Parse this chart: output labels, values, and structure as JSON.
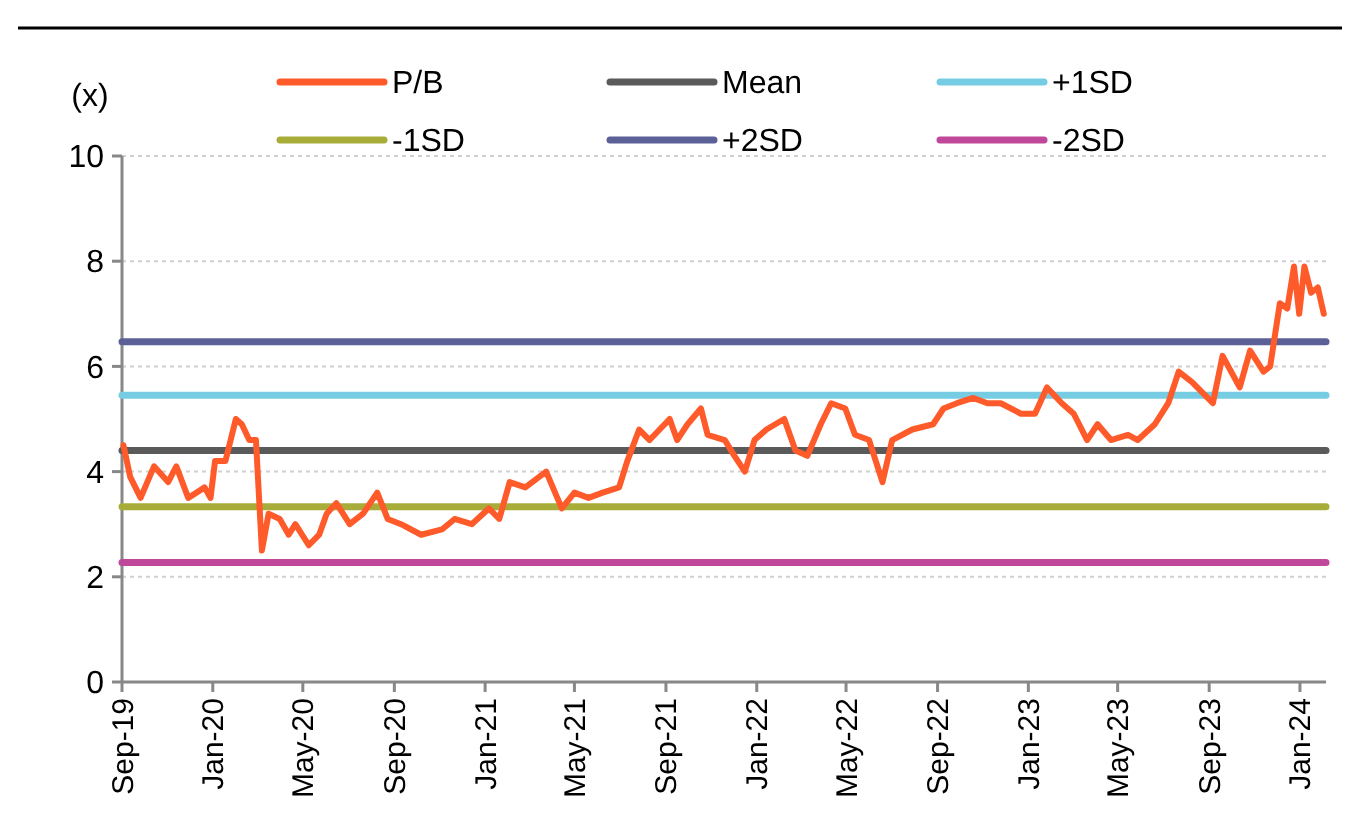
{
  "chart_data": {
    "type": "line",
    "ylabel": "(x)",
    "legend": "top",
    "grid": "y",
    "line_style": "solid",
    "marker": "none",
    "xlim": [
      "2019-09-01",
      "2024-02-05"
    ],
    "xticks": [
      {
        "value": "2019-09-01",
        "label": "Sep-19"
      },
      {
        "value": "2020-01-01",
        "label": "Jan-20"
      },
      {
        "value": "2020-05-01",
        "label": "May-20"
      },
      {
        "value": "2020-09-01",
        "label": "Sep-20"
      },
      {
        "value": "2021-01-01",
        "label": "Jan-21"
      },
      {
        "value": "2021-05-01",
        "label": "May-21"
      },
      {
        "value": "2021-09-01",
        "label": "Sep-21"
      },
      {
        "value": "2022-01-01",
        "label": "Jan-22"
      },
      {
        "value": "2022-05-01",
        "label": "May-22"
      },
      {
        "value": "2022-09-01",
        "label": "Sep-22"
      },
      {
        "value": "2023-01-01",
        "label": "Jan-23"
      },
      {
        "value": "2023-05-01",
        "label": "May-23"
      },
      {
        "value": "2023-09-01",
        "label": "Sep-23"
      },
      {
        "value": "2024-01-01",
        "label": "Jan-24"
      }
    ],
    "ylim": [
      0,
      10
    ],
    "yticks": [
      0,
      2,
      4,
      6,
      8,
      10
    ],
    "series": [
      {
        "name": "P/B",
        "color": "#ff5a2a",
        "x": [
          "2019-09-03",
          "2019-09-12",
          "2019-09-26",
          "2019-10-14",
          "2019-11-02",
          "2019-11-13",
          "2019-11-29",
          "2019-12-21",
          "2019-12-29",
          "2020-01-04",
          "2020-01-18",
          "2020-02-01",
          "2020-02-09",
          "2020-02-19",
          "2020-02-28",
          "2020-03-07",
          "2020-03-16",
          "2020-03-31",
          "2020-04-12",
          "2020-04-21",
          "2020-05-09",
          "2020-05-23",
          "2020-06-02",
          "2020-06-15",
          "2020-07-03",
          "2020-07-21",
          "2020-08-09",
          "2020-08-23",
          "2020-09-10",
          "2020-10-07",
          "2020-11-04",
          "2020-11-21",
          "2020-12-14",
          "2021-01-06",
          "2021-01-20",
          "2021-02-03",
          "2021-02-24",
          "2021-03-24",
          "2021-04-14",
          "2021-05-01",
          "2021-05-20",
          "2021-06-08",
          "2021-06-30",
          "2021-07-11",
          "2021-07-27",
          "2021-08-10",
          "2021-09-06",
          "2021-09-16",
          "2021-09-30",
          "2021-10-18",
          "2021-10-27",
          "2021-11-19",
          "2021-12-02",
          "2021-12-16",
          "2021-12-29",
          "2022-01-14",
          "2022-02-07",
          "2022-02-22",
          "2022-03-10",
          "2022-03-28",
          "2022-04-11",
          "2022-04-30",
          "2022-05-13",
          "2022-06-01",
          "2022-06-19",
          "2022-07-02",
          "2022-07-29",
          "2022-08-26",
          "2022-09-09",
          "2022-09-27",
          "2022-10-19",
          "2022-11-07",
          "2022-11-25",
          "2022-12-22",
          "2023-01-10",
          "2023-01-26",
          "2023-02-15",
          "2023-03-03",
          "2023-03-21",
          "2023-04-04",
          "2023-04-22",
          "2023-05-15",
          "2023-05-28",
          "2023-06-20",
          "2023-07-08",
          "2023-07-22",
          "2023-08-09",
          "2023-09-06",
          "2023-09-19",
          "2023-10-12",
          "2023-10-26",
          "2023-11-13",
          "2023-11-22",
          "2023-12-05",
          "2023-12-15",
          "2023-12-24",
          "2023-12-31",
          "2024-01-07",
          "2024-01-16",
          "2024-01-25",
          "2024-02-02"
        ],
        "values": [
          4.5,
          3.9,
          3.5,
          4.1,
          3.8,
          4.1,
          3.5,
          3.7,
          3.5,
          4.2,
          4.2,
          5.0,
          4.9,
          4.6,
          4.6,
          2.5,
          3.2,
          3.1,
          2.8,
          3.0,
          2.6,
          2.8,
          3.2,
          3.4,
          3.0,
          3.2,
          3.6,
          3.1,
          3.0,
          2.8,
          2.9,
          3.1,
          3.0,
          3.3,
          3.1,
          3.8,
          3.7,
          4.0,
          3.3,
          3.6,
          3.5,
          3.6,
          3.7,
          4.2,
          4.8,
          4.6,
          5.0,
          4.6,
          4.9,
          5.2,
          4.7,
          4.6,
          4.3,
          4.0,
          4.6,
          4.8,
          5.0,
          4.4,
          4.3,
          4.9,
          5.3,
          5.2,
          4.7,
          4.6,
          3.8,
          4.6,
          4.8,
          4.9,
          5.2,
          5.3,
          5.4,
          5.3,
          5.3,
          5.1,
          5.1,
          5.6,
          5.3,
          5.1,
          4.6,
          4.9,
          4.6,
          4.7,
          4.6,
          4.9,
          5.3,
          5.9,
          5.7,
          5.3,
          6.2,
          5.6,
          6.3,
          5.9,
          6.0,
          7.2,
          7.1,
          7.9,
          7.0,
          7.9,
          7.4,
          7.5,
          7.0
        ]
      },
      {
        "name": "Mean",
        "color": "#5a5a5a",
        "x": [
          "2019-09-01",
          "2024-02-05"
        ],
        "values": [
          4.4,
          4.4
        ]
      },
      {
        "name": "+1SD",
        "color": "#76cde3",
        "x": [
          "2019-09-01",
          "2024-02-05"
        ],
        "values": [
          5.45,
          5.45
        ]
      },
      {
        "name": "-1SD",
        "color": "#a8ad3a",
        "x": [
          "2019-09-01",
          "2024-02-05"
        ],
        "values": [
          3.33,
          3.33
        ]
      },
      {
        "name": "+2SD",
        "color": "#5b6196",
        "x": [
          "2019-09-01",
          "2024-02-05"
        ],
        "values": [
          6.47,
          6.47
        ]
      },
      {
        "name": "-2SD",
        "color": "#c0489a",
        "x": [
          "2019-09-01",
          "2024-02-05"
        ],
        "values": [
          2.27,
          2.27
        ]
      }
    ]
  }
}
